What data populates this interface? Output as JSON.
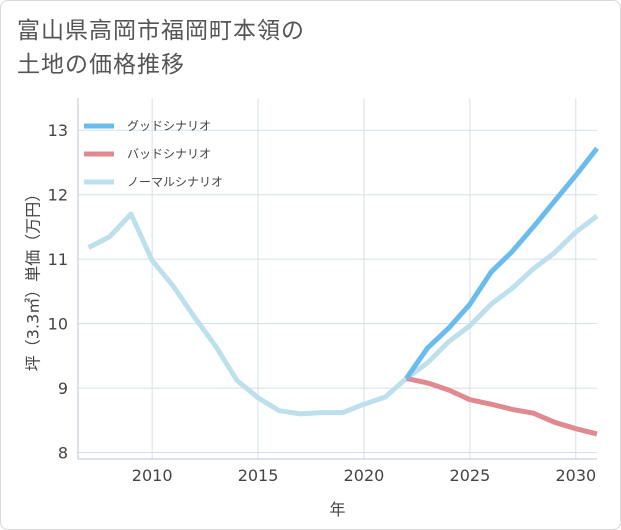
{
  "title": {
    "line1": "富山県高岡市福岡町本領の",
    "line2": "土地の価格推移"
  },
  "chart_data": {
    "type": "line",
    "title": "富山県高岡市福岡町本領の土地の価格推移",
    "xlabel": "年",
    "ylabel": "坪（3.3㎡）単価（万円）",
    "xlim": [
      2006.5,
      2031
    ],
    "ylim": [
      7.9,
      13.5
    ],
    "xticks": [
      2010,
      2015,
      2020,
      2025,
      2030
    ],
    "yticks": [
      8,
      9,
      10,
      11,
      12,
      13
    ],
    "grid": true,
    "legend_position": "top-left",
    "series": [
      {
        "name": "グッドシナリオ",
        "color": "#6bbcee",
        "x": [
          2022,
          2023,
          2024,
          2025,
          2026,
          2027,
          2028,
          2029,
          2030,
          2031
        ],
        "values": [
          9.15,
          9.62,
          9.93,
          10.3,
          10.8,
          11.12,
          11.5,
          11.9,
          12.3,
          12.72
        ]
      },
      {
        "name": "バッドシナリオ",
        "color": "#e08a90",
        "x": [
          2022,
          2023,
          2024,
          2025,
          2026,
          2027,
          2028,
          2029,
          2030,
          2031
        ],
        "values": [
          9.15,
          9.08,
          8.97,
          8.82,
          8.75,
          8.67,
          8.61,
          8.47,
          8.37,
          8.29
        ]
      },
      {
        "name": "ノーマルシナリオ",
        "color": "#bde0ec",
        "x": [
          2007,
          2008,
          2009,
          2010,
          2011,
          2012,
          2013,
          2014,
          2015,
          2016,
          2017,
          2018,
          2019,
          2020,
          2021,
          2022,
          2023,
          2024,
          2025,
          2026,
          2027,
          2028,
          2029,
          2030,
          2031
        ],
        "values": [
          11.18,
          11.35,
          11.7,
          10.98,
          10.58,
          10.1,
          9.65,
          9.12,
          8.85,
          8.65,
          8.6,
          8.62,
          8.62,
          8.75,
          8.86,
          9.15,
          9.39,
          9.72,
          9.97,
          10.3,
          10.55,
          10.85,
          11.1,
          11.42,
          11.67
        ]
      }
    ]
  }
}
